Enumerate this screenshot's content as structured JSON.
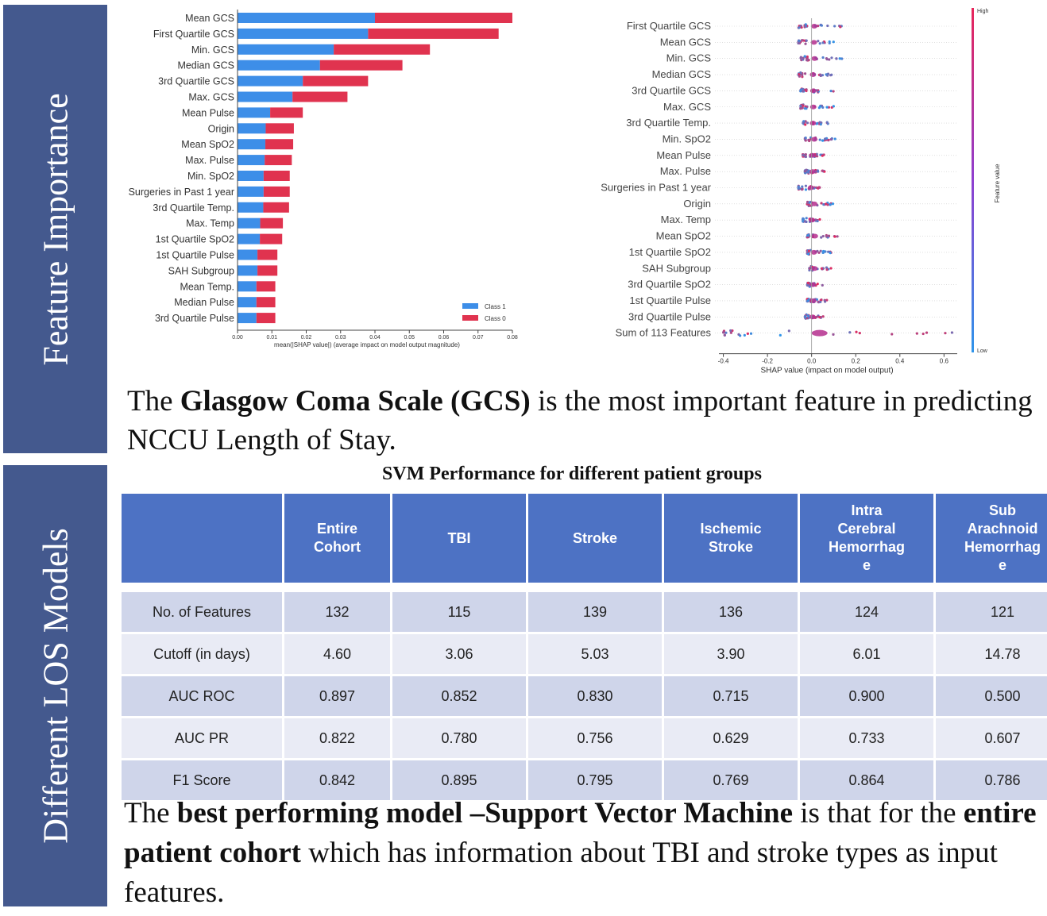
{
  "banners": {
    "feature_importance": "Feature Importance",
    "los_models": "Different LOS Models"
  },
  "chart_data": [
    {
      "type": "bar",
      "stacked": true,
      "orientation": "horizontal",
      "categories": [
        "Mean GCS",
        "First Quartile GCS",
        "Min. GCS",
        "Median GCS",
        "3rd Quartile GCS",
        "Max. GCS",
        "Mean Pulse",
        "Origin",
        "Mean SpO2",
        "Max. Pulse",
        "Min. SpO2",
        "Surgeries in Past 1 year",
        "3rd Quartile Temp.",
        "Max. Temp",
        "1st Quartile SpO2",
        "1st Quartile Pulse",
        "SAH Subgroup",
        "Mean Temp.",
        "Median Pulse",
        "3rd Quartile Pulse"
      ],
      "series": [
        {
          "name": "Class 1",
          "color": "#3d8ee8",
          "values": [
            0.04,
            0.038,
            0.028,
            0.024,
            0.019,
            0.016,
            0.0095,
            0.0082,
            0.0081,
            0.0079,
            0.0076,
            0.0076,
            0.0075,
            0.0066,
            0.0065,
            0.0058,
            0.0058,
            0.0055,
            0.0055,
            0.0055
          ]
        },
        {
          "name": "Class 0",
          "color": "#e0334f",
          "values": [
            0.04,
            0.038,
            0.028,
            0.024,
            0.019,
            0.016,
            0.0095,
            0.0082,
            0.0081,
            0.0079,
            0.0076,
            0.0076,
            0.0075,
            0.0066,
            0.0065,
            0.0058,
            0.0058,
            0.0055,
            0.0055,
            0.0055
          ]
        }
      ],
      "xlabel": "mean(|SHAP value|) (average impact on model output magnitude)",
      "xticks": [
        "0.00",
        "0.01",
        "0.02",
        "0.03",
        "0.04",
        "0.05",
        "0.06",
        "0.07",
        "0.08"
      ],
      "xlim": [
        0,
        0.08
      ],
      "legend_position": "bottom-right",
      "grid": false
    },
    {
      "type": "scatter",
      "subtype": "beeswarm",
      "categories": [
        "First Quartile GCS",
        "Mean GCS",
        "Min. GCS",
        "Median GCS",
        "3rd Quartile GCS",
        "Max. GCS",
        "3rd Quartile Temp.",
        "Min. SpO2",
        "Mean Pulse",
        "Max. Pulse",
        "Surgeries in Past 1 year",
        "Origin",
        "Max. Temp",
        "Mean SpO2",
        "1st Quartile SpO2",
        "SAH Subgroup",
        "3rd Quartile SpO2",
        "1st Quartile Pulse",
        "3rd Quartile Pulse",
        "Sum of 113 Features"
      ],
      "ranges": [
        [
          -0.06,
          0.14
        ],
        [
          -0.06,
          0.13
        ],
        [
          -0.05,
          0.14
        ],
        [
          -0.06,
          0.1
        ],
        [
          -0.05,
          0.1
        ],
        [
          -0.05,
          0.1
        ],
        [
          -0.04,
          0.08
        ],
        [
          -0.03,
          0.11
        ],
        [
          -0.04,
          0.06
        ],
        [
          -0.03,
          0.06
        ],
        [
          -0.06,
          0.04
        ],
        [
          -0.02,
          0.1
        ],
        [
          -0.04,
          0.05
        ],
        [
          -0.02,
          0.12
        ],
        [
          -0.02,
          0.09
        ],
        [
          -0.01,
          0.1
        ],
        [
          -0.02,
          0.05
        ],
        [
          -0.02,
          0.07
        ],
        [
          -0.03,
          0.06
        ],
        [
          -0.4,
          0.64
        ]
      ],
      "xlabel": "SHAP value (impact on model output)",
      "xticks": [
        "-0.4",
        "-0.2",
        "0.0",
        "0.2",
        "0.4",
        "0.6"
      ],
      "xlim": [
        -0.42,
        0.66
      ],
      "colorbar": {
        "label": "Feature value",
        "high": "High",
        "low": "Low",
        "high_color": "#e8265a",
        "low_color": "#2f95ea"
      }
    }
  ],
  "caption1": {
    "p1": "The ",
    "bold": "Glasgow Coma Scale (GCS)",
    "p2": " is the most important feature in predicting NCCU Length of Stay."
  },
  "table": {
    "title": "SVM Performance for different patient groups",
    "headers": [
      "",
      "Entire Cohort",
      "TBI",
      "Stroke",
      "Ischemic Stroke",
      "Intra Cerebral Hemorrhage",
      "Sub Arachnoid Hemorrhage"
    ],
    "header_lines": [
      [
        ""
      ],
      [
        "Entire",
        "Cohort"
      ],
      [
        "TBI"
      ],
      [
        "Stroke"
      ],
      [
        "Ischemic",
        "Stroke"
      ],
      [
        "Intra",
        "Cerebral",
        "Hemorrhag",
        "e"
      ],
      [
        "Sub",
        "Arachnoid",
        "Hemorrhag",
        "e"
      ]
    ],
    "rows": [
      [
        "No. of Features",
        "132",
        "115",
        "139",
        "136",
        "124",
        "121"
      ],
      [
        "Cutoff (in days)",
        "4.60",
        "3.06",
        "5.03",
        "3.90",
        "6.01",
        "14.78"
      ],
      [
        "AUC ROC",
        "0.897",
        "0.852",
        "0.830",
        "0.715",
        "0.900",
        "0.500"
      ],
      [
        "AUC PR",
        "0.822",
        "0.780",
        "0.756",
        "0.629",
        "0.733",
        "0.607"
      ],
      [
        "F1 Score",
        "0.842",
        "0.895",
        "0.795",
        "0.769",
        "0.864",
        "0.786"
      ]
    ]
  },
  "caption2": {
    "p1": "The ",
    "b1": "best performing model –Support Vector Machine",
    "p2": " is that for the ",
    "b2": "entire patient cohort",
    "p3": " which has information about TBI and stroke types as input features."
  }
}
